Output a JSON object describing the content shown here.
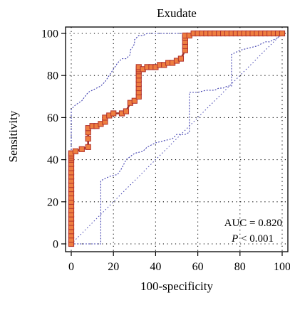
{
  "chart_data": {
    "type": "line",
    "title": "Exudate",
    "xlabel": "100-specificity",
    "ylabel": "Sensitivity",
    "xlim": [
      0,
      100
    ],
    "ylim": [
      0,
      100
    ],
    "xticks": [
      0,
      20,
      40,
      60,
      80,
      100
    ],
    "yticks": [
      0,
      20,
      40,
      60,
      80,
      100
    ],
    "grid": true,
    "annotations": {
      "auc": "AUC = 0.820",
      "p_symbol": "P",
      "p_rest": " < 0.001"
    },
    "colors": {
      "roc_line": "#a0302a",
      "marker_fill": "#ee7e40",
      "marker_edge": "#b0302c",
      "ci_line": "#4040b0",
      "diagonal": "#4040b0",
      "grid": "#000000"
    },
    "series": [
      {
        "type": "roc",
        "x": [
          0,
          0,
          0,
          0,
          0,
          0,
          0,
          0,
          0,
          0,
          0,
          0,
          0,
          0,
          0,
          0,
          0,
          0,
          0,
          0,
          0,
          0,
          0,
          0,
          0,
          2,
          5,
          8,
          8,
          8,
          8,
          10,
          12,
          14,
          16,
          16,
          18,
          20,
          24,
          26,
          28,
          30,
          32,
          32,
          32,
          32,
          32,
          32,
          32,
          32,
          32,
          34,
          36,
          38,
          40,
          42,
          44,
          46,
          48,
          50,
          52,
          54,
          54,
          54,
          54,
          54,
          56,
          58,
          60,
          62,
          64,
          66,
          68,
          70,
          72,
          74,
          76,
          78,
          80,
          82,
          84,
          86,
          88,
          90,
          92,
          94,
          96,
          98,
          100
        ],
        "y": [
          0,
          2,
          4,
          6,
          8,
          10,
          12,
          14,
          16,
          18,
          20,
          22,
          24,
          26,
          28,
          30,
          32,
          34,
          36,
          38,
          40,
          41,
          42,
          43,
          43,
          44,
          45,
          46,
          50,
          53,
          55,
          56,
          56,
          57,
          58,
          60,
          61,
          62,
          62,
          63,
          67,
          68,
          70,
          72,
          74,
          76,
          78,
          80,
          82,
          83,
          84,
          83,
          84,
          84,
          84,
          85,
          85,
          86,
          86,
          87,
          88,
          92,
          94,
          96,
          98,
          99,
          99,
          100,
          100,
          100,
          100,
          100,
          100,
          100,
          100,
          100,
          100,
          100,
          100,
          100,
          100,
          100,
          100,
          100,
          100,
          100,
          100,
          100,
          100
        ]
      },
      {
        "type": "ci_upper",
        "x": [
          0,
          0,
          0,
          0,
          0,
          2,
          5,
          8,
          10,
          12,
          14,
          16,
          18,
          20,
          22,
          24,
          26,
          28,
          28,
          30,
          30,
          32,
          34,
          36,
          40,
          44,
          48,
          50,
          54,
          58,
          62,
          66,
          70,
          75,
          80,
          85,
          90,
          95,
          100
        ],
        "y": [
          0,
          30,
          52,
          60,
          64,
          66,
          68,
          72,
          73,
          74,
          75,
          77,
          80,
          83,
          86,
          88,
          88,
          90,
          92,
          95,
          97,
          99,
          99,
          100,
          100,
          100,
          100,
          100,
          100,
          100,
          100,
          100,
          100,
          100,
          100,
          100,
          100,
          100,
          100
        ]
      },
      {
        "type": "ci_lower",
        "x": [
          0,
          5,
          10,
          12,
          14,
          14,
          16,
          18,
          22,
          24,
          26,
          30,
          34,
          36,
          40,
          44,
          48,
          50,
          54,
          56,
          56,
          60,
          64,
          68,
          70,
          72,
          74,
          76,
          76,
          80,
          84,
          88,
          90,
          92,
          94,
          96,
          98,
          100
        ],
        "y": [
          0,
          0,
          0,
          0,
          0,
          30,
          31,
          32,
          33,
          36,
          40,
          43,
          44,
          46,
          48,
          49,
          50,
          52,
          52,
          53,
          72,
          72,
          73,
          73,
          74,
          74,
          75,
          75,
          90,
          92,
          93,
          94,
          95,
          96,
          96,
          97,
          98,
          100
        ]
      }
    ]
  }
}
